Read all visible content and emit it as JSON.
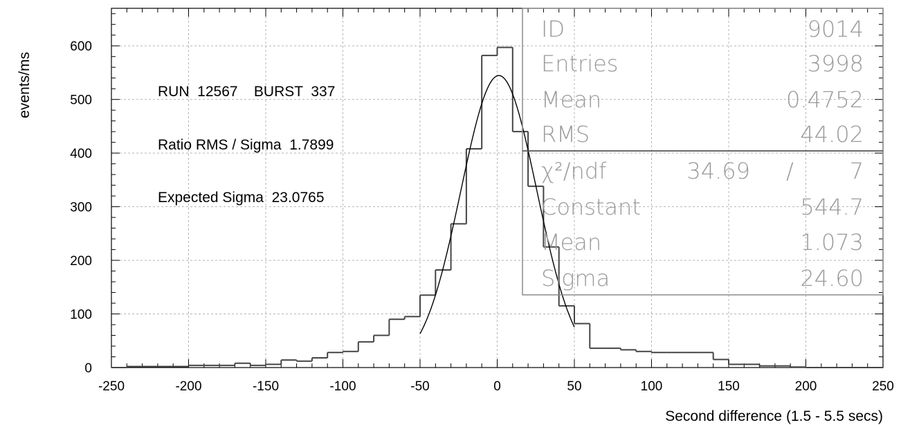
{
  "chart_data": {
    "type": "bar",
    "xlabel": "Second difference  (1.5 - 5.5 secs)",
    "ylabel": "events/ms",
    "xlim": [
      -250,
      250
    ],
    "ylim": [
      0,
      670
    ],
    "x_ticks": [
      "-250",
      "-200",
      "-150",
      "-100",
      "-50",
      "0",
      "50",
      "100",
      "150",
      "200",
      "250"
    ],
    "y_ticks": [
      "0",
      "100",
      "200",
      "300",
      "400",
      "500",
      "600"
    ],
    "grid": true,
    "bin_width": 10,
    "bin_edges": [
      -250,
      -240,
      -230,
      -220,
      -210,
      -200,
      -190,
      -180,
      -170,
      -160,
      -150,
      -140,
      -130,
      -120,
      -110,
      -100,
      -90,
      -80,
      -70,
      -60,
      -50,
      -40,
      -30,
      -20,
      -10,
      0,
      10,
      20,
      30,
      40,
      50,
      60,
      70,
      80,
      90,
      100,
      110,
      120,
      130,
      140,
      150,
      160,
      170,
      180,
      190,
      200,
      210,
      220,
      230,
      240,
      250
    ],
    "histogram_values": [
      0,
      2,
      2,
      2,
      2,
      4,
      4,
      4,
      8,
      4,
      6,
      14,
      12,
      18,
      28,
      30,
      48,
      60,
      90,
      95,
      135,
      182,
      268,
      408,
      582,
      597,
      440,
      338,
      225,
      115,
      82,
      36,
      36,
      33,
      30,
      28,
      28,
      28,
      28,
      15,
      6,
      6,
      3,
      3,
      1,
      0,
      0,
      0,
      0,
      0
    ],
    "fit": {
      "type": "gaussian",
      "constant": 544.7,
      "mean": 1.073,
      "sigma": 24.6,
      "x_range": [
        -50,
        50
      ]
    },
    "annotations": [
      "RUN  12567    BURST  337",
      "Ratio RMS / Sigma  1.7899",
      "Expected Sigma  23.0765"
    ],
    "stats_box": {
      "rows": [
        {
          "label": "ID",
          "value": "9014"
        },
        {
          "label": "Entries",
          "value": "3998"
        },
        {
          "label": "Mean",
          "value": "0.4752"
        },
        {
          "label": "RMS",
          "value": "44.02"
        }
      ],
      "fit_rows": [
        {
          "label": "χ²/ndf",
          "value1": "34.69",
          "sep": "/",
          "value2": "7"
        },
        {
          "label": "Constant",
          "value": "544.7"
        },
        {
          "label": "Mean",
          "value": "1.073"
        },
        {
          "label": "Sigma",
          "value": "24.60"
        }
      ]
    }
  }
}
